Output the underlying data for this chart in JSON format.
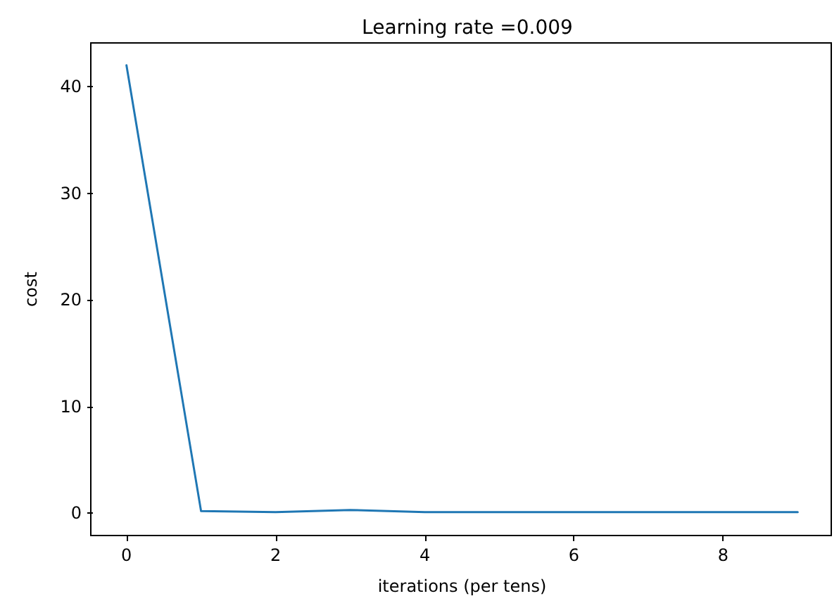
{
  "chart_data": {
    "type": "line",
    "title": "Learning rate =0.009",
    "xlabel": "iterations (per tens)",
    "ylabel": "cost",
    "x": [
      0,
      1,
      2,
      3,
      4,
      5,
      6,
      7,
      8,
      9
    ],
    "series": [
      {
        "color": "#1f77b4",
        "values": [
          42,
          0.2,
          0.1,
          0.3,
          0.1,
          0.1,
          0.1,
          0.1,
          0.1,
          0.1
        ]
      }
    ],
    "xlim": [
      -0.45,
      9.45
    ],
    "ylim": [
      -2.1,
      44.1
    ],
    "xticks": [
      0,
      2,
      4,
      6,
      8
    ],
    "yticks": [
      0,
      10,
      20,
      30,
      40
    ],
    "grid": false,
    "marker": "none",
    "line_style": "solid"
  }
}
